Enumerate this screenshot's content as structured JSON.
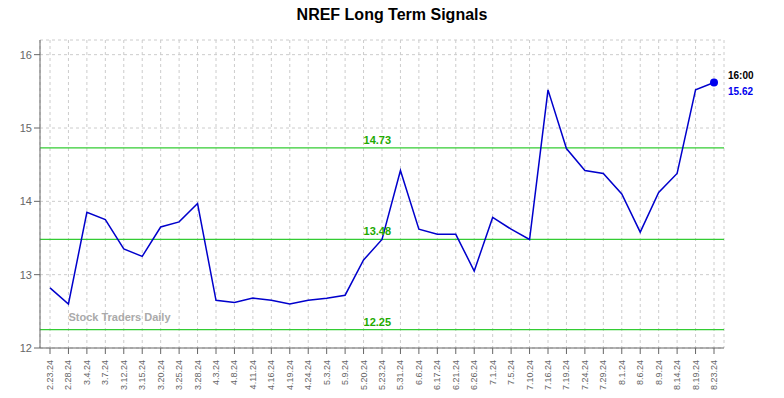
{
  "chart_data": {
    "type": "line",
    "title": "NREF Long Term Signals",
    "categories": [
      "2.23.24",
      "2.28.24",
      "3.4.24",
      "3.7.24",
      "3.12.24",
      "3.15.24",
      "3.20.24",
      "3.25.24",
      "3.28.24",
      "4.3.24",
      "4.8.24",
      "4.11.24",
      "4.16.24",
      "4.19.24",
      "4.24.24",
      "5.3.24",
      "5.9.24",
      "5.20.24",
      "5.23.24",
      "5.31.24",
      "6.6.24",
      "6.17.24",
      "6.21.24",
      "6.26.24",
      "7.1.24",
      "7.5.24",
      "7.10.24",
      "7.16.24",
      "7.19.24",
      "7.24.24",
      "7.29.24",
      "8.1.24",
      "8.6.24",
      "8.9.24",
      "8.14.24",
      "8.19.24",
      "8.23.24"
    ],
    "values": [
      12.82,
      12.6,
      13.85,
      13.75,
      13.35,
      13.25,
      13.65,
      13.72,
      13.97,
      12.65,
      12.62,
      12.68,
      12.65,
      12.6,
      12.65,
      12.68,
      12.72,
      13.2,
      13.48,
      14.42,
      13.62,
      13.55,
      13.55,
      13.05,
      13.78,
      13.62,
      13.48,
      15.52,
      14.72,
      14.42,
      14.38,
      14.1,
      13.58,
      14.12,
      14.38,
      15.52,
      15.62
    ],
    "color": "#0000cc",
    "ylim": [
      12.0,
      16.2
    ],
    "yticks": [
      12,
      13,
      14,
      15,
      16
    ],
    "grid": true,
    "hlines": {
      "values": [
        14.73,
        13.48,
        12.25
      ],
      "color": "#33cc33"
    },
    "annotations": [
      {
        "text": "14.73",
        "x": "5.20.24",
        "y": 14.73,
        "color": "#22aa00"
      },
      {
        "text": "13.48",
        "x": "5.20.24",
        "y": 13.48,
        "color": "#22aa00"
      },
      {
        "text": "12.25",
        "x": "5.20.24",
        "y": 12.25,
        "color": "#22aa00"
      },
      {
        "text": "Stock Traders Daily",
        "x": "2.28.24",
        "y": 12.32,
        "color": "#aaaaaa"
      }
    ],
    "last_point": {
      "x": "8.23.24",
      "y": 15.62,
      "color": "#0000ee",
      "time": "16:00",
      "label": "15.62"
    }
  }
}
